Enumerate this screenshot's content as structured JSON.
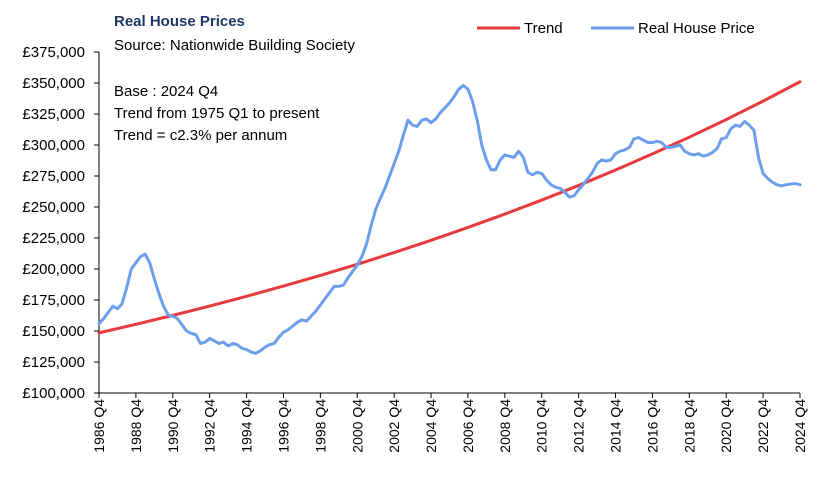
{
  "chart_data": {
    "type": "line",
    "title": "Real House Prices",
    "subtitle": "Source: Nationwide Building Society",
    "annotations": [
      "Base : 2024 Q4",
      "Trend from 1975 Q1 to present",
      "Trend = c2.3% per annum"
    ],
    "title_color": "#1F3864",
    "legend": {
      "placement": "top-right"
    },
    "x_tick_labels": [
      "1986 Q4",
      "1988 Q4",
      "1990 Q4",
      "1992 Q4",
      "1994 Q4",
      "1996 Q4",
      "1998 Q4",
      "2000 Q4",
      "2002 Q4",
      "2004 Q4",
      "2006 Q4",
      "2008 Q4",
      "2010 Q4",
      "2012 Q4",
      "2014 Q4",
      "2016 Q4",
      "2018 Q4",
      "2020 Q4",
      "2022 Q4",
      "2024 Q4"
    ],
    "xlim": [
      1986.75,
      2024.75
    ],
    "ylim": [
      100000,
      375000
    ],
    "y_ticks": [
      100000,
      125000,
      150000,
      175000,
      200000,
      225000,
      250000,
      275000,
      300000,
      325000,
      350000,
      375000
    ],
    "y_tick_labels": [
      "£100,000",
      "£125,000",
      "£150,000",
      "£175,000",
      "£200,000",
      "£225,000",
      "£250,000",
      "£275,000",
      "£300,000",
      "£325,000",
      "£350,000",
      "£375,000"
    ],
    "grid": false,
    "series": [
      {
        "name": "Trend",
        "color": "#E8393C",
        "x": [
          1986.75,
          1988.75,
          1990.75,
          1992.75,
          1994.75,
          1996.75,
          1998.75,
          2000.75,
          2002.75,
          2004.75,
          2006.75,
          2008.75,
          2010.75,
          2012.75,
          2014.75,
          2016.75,
          2018.75,
          2020.75,
          2022.75,
          2024.75
        ],
        "values": [
          148500,
          155400,
          162600,
          170100,
          178000,
          186200,
          194800,
          203800,
          213300,
          223100,
          233500,
          244300,
          255600,
          267400,
          279800,
          292800,
          306300,
          320500,
          335400,
          351000
        ]
      },
      {
        "name": "Real House Price",
        "color": "#6D9EEB",
        "x": [
          1986.75,
          1987.0,
          1987.25,
          1987.5,
          1987.75,
          1988.0,
          1988.25,
          1988.5,
          1988.75,
          1989.0,
          1989.25,
          1989.5,
          1989.75,
          1990.0,
          1990.25,
          1990.5,
          1990.75,
          1991.0,
          1991.25,
          1991.5,
          1991.75,
          1992.0,
          1992.25,
          1992.5,
          1992.75,
          1993.0,
          1993.25,
          1993.5,
          1993.75,
          1994.0,
          1994.25,
          1994.5,
          1994.75,
          1995.0,
          1995.25,
          1995.5,
          1995.75,
          1996.0,
          1996.25,
          1996.5,
          1996.75,
          1997.0,
          1997.25,
          1997.5,
          1997.75,
          1998.0,
          1998.25,
          1998.5,
          1998.75,
          1999.0,
          1999.25,
          1999.5,
          1999.75,
          2000.0,
          2000.25,
          2000.5,
          2000.75,
          2001.0,
          2001.25,
          2001.5,
          2001.75,
          2002.0,
          2002.25,
          2002.5,
          2002.75,
          2003.0,
          2003.25,
          2003.5,
          2003.75,
          2004.0,
          2004.25,
          2004.5,
          2004.75,
          2005.0,
          2005.25,
          2005.5,
          2005.75,
          2006.0,
          2006.25,
          2006.5,
          2006.75,
          2007.0,
          2007.25,
          2007.5,
          2007.75,
          2008.0,
          2008.25,
          2008.5,
          2008.75,
          2009.0,
          2009.25,
          2009.5,
          2009.75,
          2010.0,
          2010.25,
          2010.5,
          2010.75,
          2011.0,
          2011.25,
          2011.5,
          2011.75,
          2012.0,
          2012.25,
          2012.5,
          2012.75,
          2013.0,
          2013.25,
          2013.5,
          2013.75,
          2014.0,
          2014.25,
          2014.5,
          2014.75,
          2015.0,
          2015.25,
          2015.5,
          2015.75,
          2016.0,
          2016.25,
          2016.5,
          2016.75,
          2017.0,
          2017.25,
          2017.5,
          2017.75,
          2018.0,
          2018.25,
          2018.5,
          2018.75,
          2019.0,
          2019.25,
          2019.5,
          2019.75,
          2020.0,
          2020.25,
          2020.5,
          2020.75,
          2021.0,
          2021.25,
          2021.5,
          2021.75,
          2022.0,
          2022.25,
          2022.5,
          2022.75,
          2023.0,
          2023.25,
          2023.5,
          2023.75,
          2024.0,
          2024.25,
          2024.5,
          2024.75
        ],
        "values": [
          156000,
          160000,
          165000,
          170000,
          168000,
          172000,
          185000,
          200000,
          205000,
          210000,
          212000,
          205000,
          192000,
          180000,
          170000,
          163000,
          162000,
          160000,
          155000,
          150000,
          148000,
          147000,
          140000,
          141000,
          144000,
          142000,
          140000,
          141000,
          138000,
          140000,
          139000,
          136000,
          135000,
          133000,
          132000,
          134000,
          137000,
          139000,
          140000,
          145000,
          149000,
          151000,
          154000,
          157000,
          159000,
          158000,
          162000,
          166000,
          171000,
          176000,
          181000,
          186000,
          186000,
          187000,
          193000,
          198000,
          203000,
          210000,
          220000,
          235000,
          248000,
          257000,
          265000,
          275000,
          285000,
          295000,
          308000,
          320000,
          316000,
          315000,
          320000,
          321000,
          318000,
          321000,
          326000,
          330000,
          334000,
          339000,
          345000,
          348000,
          345000,
          335000,
          320000,
          300000,
          288000,
          280000,
          280000,
          288000,
          292000,
          291000,
          290000,
          295000,
          290000,
          278000,
          276000,
          278000,
          277000,
          272000,
          268000,
          266000,
          265000,
          262000,
          258000,
          259000,
          264000,
          268000,
          273000,
          278000,
          285000,
          288000,
          287000,
          288000,
          293000,
          295000,
          296000,
          298000,
          305000,
          306000,
          304000,
          302000,
          302000,
          303000,
          302000,
          298000,
          298000,
          299000,
          300000,
          295000,
          293000,
          292000,
          293000,
          291000,
          292000,
          294000,
          297000,
          305000,
          306000,
          313000,
          316000,
          315000,
          319000,
          316000,
          312000,
          290000,
          277000,
          273000,
          270000,
          268000,
          267000,
          268000,
          268500,
          269000,
          268000
        ]
      }
    ]
  }
}
